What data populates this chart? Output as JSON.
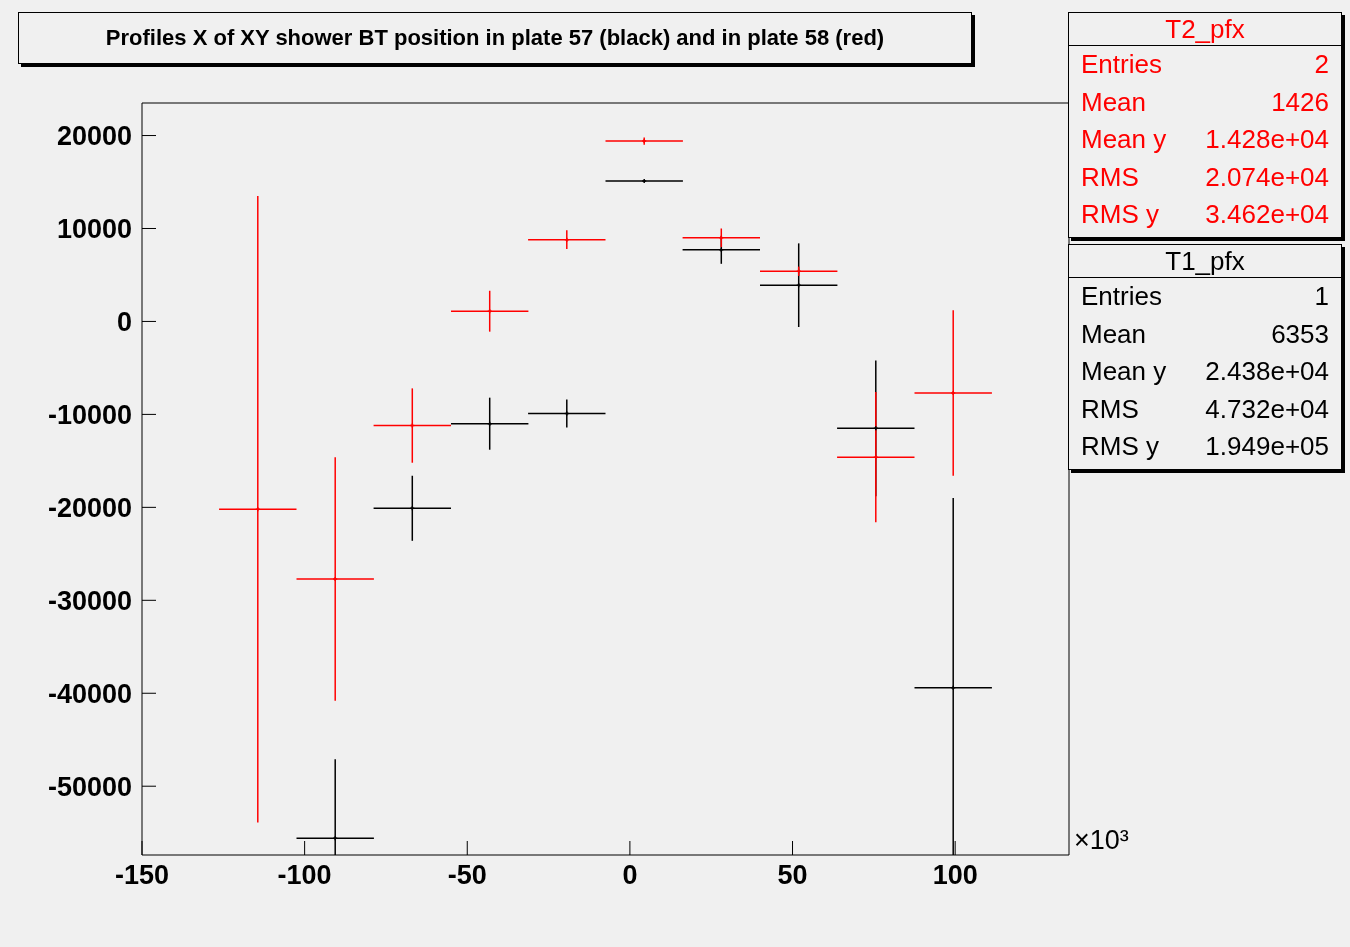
{
  "chart_data": {
    "type": "scatter",
    "title": "Profiles X of XY shower BT position in plate 57 (black) and in plate 58 (red)",
    "marker": "cross",
    "xlim": [
      -150,
      135
    ],
    "xticks": [
      -150,
      -100,
      -50,
      0,
      50,
      100
    ],
    "ylim": [
      -57400,
      23500
    ],
    "yticks": [
      -50000,
      -40000,
      -30000,
      -20000,
      -10000,
      0,
      10000,
      20000
    ],
    "series": [
      {
        "color": "#000000",
        "x": [
          -90.6,
          -66.9,
          -43.1,
          -19.4,
          4.4,
          28.1,
          51.9,
          75.6,
          99.4
        ],
        "values": [
          -55600,
          -20100,
          -11000,
          -9900,
          15100,
          7700,
          3900,
          -11500,
          -39400
        ],
        "errors": [
          [
            -57400,
            -47100
          ],
          3500,
          2800,
          1500,
          0,
          1500,
          4500,
          7300,
          [
            -57400,
            -19000
          ]
        ],
        "xerrors": [
          11.9,
          11.9,
          11.9,
          11.9,
          11.9,
          11.9,
          11.9,
          11.9,
          11.9
        ]
      },
      {
        "color": "#ff0000",
        "x": [
          -114.4,
          -90.6,
          -66.9,
          -43.1,
          -19.4,
          4.4,
          28.1,
          51.9,
          75.6,
          99.4
        ],
        "values": [
          -20200,
          -27700,
          -11200,
          1100,
          8800,
          19400,
          9000,
          5400,
          -14600,
          -7700
        ],
        "errors": [
          33700,
          13100,
          4000,
          2200,
          1000,
          400,
          1000,
          500,
          7000,
          8900
        ],
        "xerrors": [
          11.9,
          11.9,
          11.9,
          11.9,
          11.9,
          11.9,
          11.9,
          11.9,
          11.9,
          11.9
        ]
      }
    ],
    "annotations": [
      "×10³",
      "T2_pfx",
      "Entries",
      "2",
      "Mean",
      "1426",
      "Mean y",
      "1.428e+04",
      "RMS",
      "2.074e+04",
      "RMS y",
      "3.462e+04",
      "T1_pfx",
      "Entries",
      "1",
      "Mean",
      "6353",
      "Mean y",
      "2.438e+04",
      "RMS",
      "4.732e+04",
      "RMS y",
      "1.949e+05"
    ]
  }
}
